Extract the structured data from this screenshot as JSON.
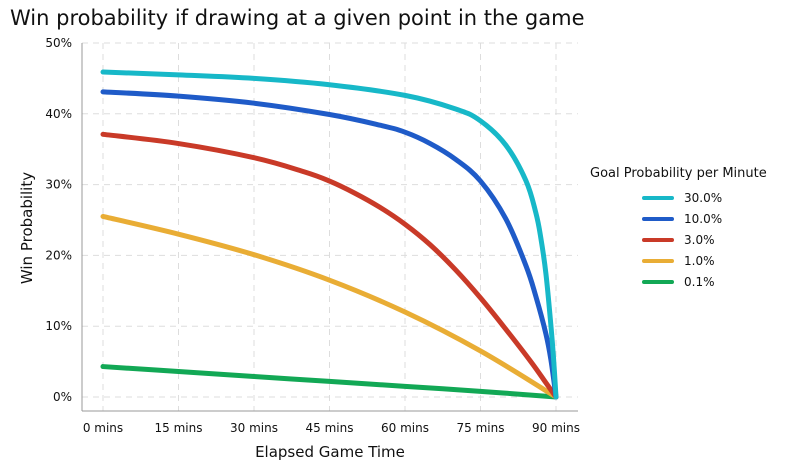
{
  "chart_data": {
    "type": "line",
    "title": "Win probability if drawing at a given point in the game",
    "xlabel": "Elapsed Game Time",
    "ylabel": "Win Probability",
    "xlim": [
      0,
      90
    ],
    "ylim": [
      0,
      50
    ],
    "x_ticks": [
      0,
      15,
      30,
      45,
      60,
      75,
      90
    ],
    "x_tick_labels": [
      "0 mins",
      "15 mins",
      "30 mins",
      "45 mins",
      "60 mins",
      "75 mins",
      "90 mins"
    ],
    "y_ticks": [
      0,
      10,
      20,
      30,
      40,
      50
    ],
    "y_tick_labels": [
      "0%",
      "10%",
      "20%",
      "30%",
      "40%",
      "50%"
    ],
    "grid": true,
    "legend_title": "Goal Probability per Minute",
    "legend_position": "right",
    "series": [
      {
        "name": "30.0%",
        "color": "#17b8c8",
        "x": [
          0,
          15,
          30,
          45,
          60,
          70,
          75,
          80,
          84,
          86,
          87,
          88,
          89,
          89.5,
          90
        ],
        "y": [
          45.9,
          45.5,
          45.0,
          44.1,
          42.6,
          40.7,
          39.0,
          35.6,
          30.6,
          26.0,
          22.4,
          17.4,
          10.0,
          5.6,
          0
        ]
      },
      {
        "name": "10.0%",
        "color": "#1f5bc8",
        "x": [
          0,
          15,
          30,
          45,
          55,
          60,
          65,
          70,
          75,
          80,
          84,
          86,
          88,
          89,
          90
        ],
        "y": [
          43.1,
          42.5,
          41.5,
          39.9,
          38.4,
          37.4,
          35.8,
          33.6,
          30.5,
          25.2,
          18.6,
          14.2,
          8.9,
          5.2,
          0
        ]
      },
      {
        "name": "3.0%",
        "color": "#c93a28",
        "x": [
          0,
          15,
          30,
          40,
          45,
          50,
          55,
          60,
          65,
          70,
          75,
          80,
          85,
          88,
          90
        ],
        "y": [
          37.1,
          35.8,
          33.8,
          31.8,
          30.5,
          28.8,
          26.8,
          24.4,
          21.5,
          18.0,
          14.0,
          9.6,
          5.0,
          2.0,
          0
        ]
      },
      {
        "name": "1.0%",
        "color": "#e9ad35",
        "x": [
          0,
          15,
          30,
          45,
          60,
          75,
          90
        ],
        "y": [
          25.5,
          23.0,
          20.1,
          16.5,
          12.0,
          6.5,
          0
        ]
      },
      {
        "name": "0.1%",
        "color": "#12a855",
        "x": [
          0,
          15,
          30,
          45,
          60,
          75,
          90
        ],
        "y": [
          4.3,
          3.6,
          2.9,
          2.2,
          1.5,
          0.8,
          0
        ]
      }
    ]
  }
}
